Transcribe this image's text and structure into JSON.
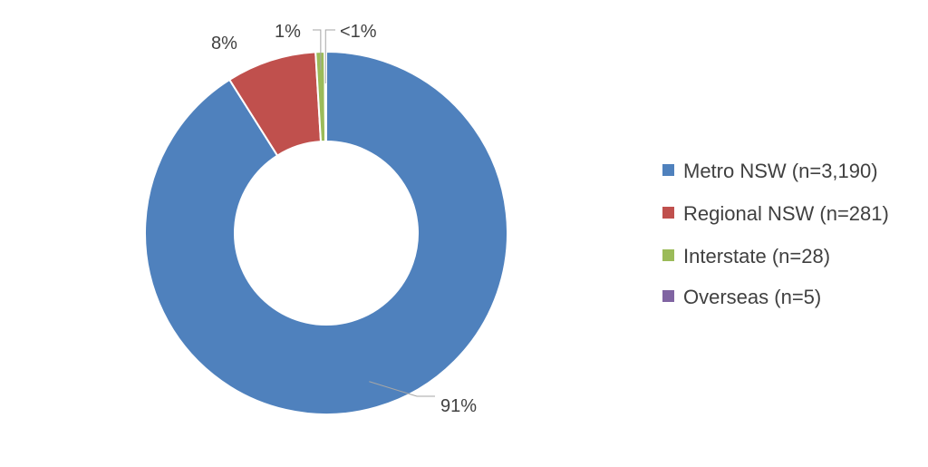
{
  "chart_data": {
    "type": "donut",
    "title": "",
    "categories": [
      "Metro NSW (n=3,190)",
      "Regional NSW (n=281)",
      "Interstate (n=28)",
      "Overseas (n=5)"
    ],
    "values": [
      3190,
      281,
      28,
      5
    ],
    "percent_labels": [
      "91%",
      "8%",
      "1%",
      "<1%"
    ],
    "colors": [
      "#4F81BD",
      "#C0504D",
      "#9BBB59",
      "#8064A2"
    ],
    "legend_position": "right",
    "start_angle": "top",
    "direction": "clockwise"
  }
}
